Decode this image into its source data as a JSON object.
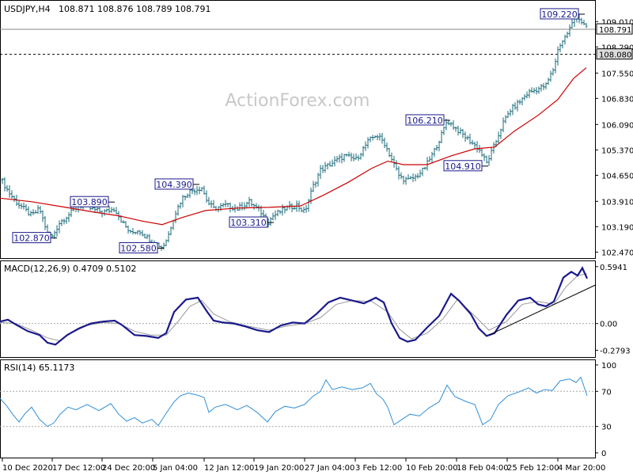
{
  "chart_data": [
    {
      "type": "line",
      "panel": "price",
      "title": "USDJPY,H4",
      "ohlc_header": "108.871 108.876 108.789 108.791",
      "watermark": "ActionForex.com",
      "ylim": [
        102.3,
        109.6
      ],
      "y_ticks": [
        "109.010",
        "108.290",
        "107.550",
        "106.830",
        "106.090",
        "105.370",
        "104.650",
        "103.910",
        "103.190",
        "102.470"
      ],
      "current_price_label": "108.791",
      "current_price": 108.791,
      "level_line_label": "108.080",
      "level_line": 108.08,
      "moving_average_color": "#cc0000",
      "bar_color": "#1a6b7a",
      "price_path": [
        [
          0,
          104.6
        ],
        [
          10,
          104.2
        ],
        [
          20,
          103.9
        ],
        [
          30,
          103.7
        ],
        [
          40,
          103.5
        ],
        [
          50,
          103.7
        ],
        [
          60,
          103.0
        ],
        [
          66,
          102.9
        ],
        [
          75,
          103.3
        ],
        [
          90,
          103.6
        ],
        [
          100,
          103.8
        ],
        [
          115,
          103.7
        ],
        [
          130,
          103.6
        ],
        [
          145,
          103.7
        ],
        [
          155,
          103.3
        ],
        [
          165,
          103.0
        ],
        [
          175,
          103.1
        ],
        [
          185,
          102.9
        ],
        [
          195,
          102.75
        ],
        [
          205,
          102.6
        ],
        [
          212,
          102.9
        ],
        [
          220,
          103.5
        ],
        [
          230,
          104.0
        ],
        [
          240,
          104.2
        ],
        [
          255,
          104.3
        ],
        [
          262,
          103.9
        ],
        [
          270,
          103.7
        ],
        [
          285,
          103.8
        ],
        [
          300,
          103.7
        ],
        [
          315,
          103.9
        ],
        [
          330,
          103.6
        ],
        [
          338,
          103.3
        ],
        [
          345,
          103.5
        ],
        [
          360,
          103.7
        ],
        [
          375,
          103.8
        ],
        [
          385,
          103.6
        ],
        [
          395,
          104.3
        ],
        [
          405,
          104.8
        ],
        [
          420,
          105.0
        ],
        [
          435,
          105.2
        ],
        [
          450,
          105.1
        ],
        [
          465,
          105.6
        ],
        [
          475,
          105.8
        ],
        [
          485,
          105.6
        ],
        [
          495,
          105.1
        ],
        [
          505,
          104.6
        ],
        [
          515,
          104.5
        ],
        [
          525,
          104.6
        ],
        [
          535,
          104.8
        ],
        [
          548,
          105.3
        ],
        [
          558,
          105.8
        ],
        [
          565,
          106.2
        ],
        [
          575,
          106.0
        ],
        [
          585,
          105.8
        ],
        [
          595,
          105.6
        ],
        [
          605,
          105.4
        ],
        [
          615,
          105.0
        ],
        [
          625,
          105.5
        ],
        [
          635,
          106.1
        ],
        [
          645,
          106.5
        ],
        [
          655,
          106.7
        ],
        [
          668,
          107.0
        ],
        [
          680,
          107.1
        ],
        [
          690,
          107.2
        ],
        [
          700,
          107.7
        ],
        [
          706,
          108.3
        ],
        [
          715,
          108.6
        ],
        [
          722,
          108.9
        ],
        [
          728,
          109.2
        ],
        [
          735,
          109.0
        ],
        [
          742,
          108.79
        ]
      ],
      "ma_path": [
        [
          0,
          104.0
        ],
        [
          40,
          103.9
        ],
        [
          80,
          103.75
        ],
        [
          120,
          103.6
        ],
        [
          150,
          103.5
        ],
        [
          180,
          103.35
        ],
        [
          205,
          103.25
        ],
        [
          230,
          103.45
        ],
        [
          260,
          103.65
        ],
        [
          300,
          103.72
        ],
        [
          340,
          103.74
        ],
        [
          380,
          103.78
        ],
        [
          410,
          104.1
        ],
        [
          440,
          104.45
        ],
        [
          470,
          104.85
        ],
        [
          490,
          105.05
        ],
        [
          510,
          104.95
        ],
        [
          540,
          104.95
        ],
        [
          570,
          105.2
        ],
        [
          600,
          105.4
        ],
        [
          625,
          105.45
        ],
        [
          650,
          105.9
        ],
        [
          680,
          106.35
        ],
        [
          705,
          106.8
        ],
        [
          725,
          107.4
        ],
        [
          741,
          107.7
        ]
      ],
      "annotations": [
        {
          "label": "109.220",
          "value": 109.22
        },
        {
          "label": "106.210",
          "value": 106.21
        },
        {
          "label": "104.910",
          "value": 104.91
        },
        {
          "label": "104.390",
          "value": 104.39
        },
        {
          "label": "103.890",
          "value": 103.89
        },
        {
          "label": "103.310",
          "value": 103.31
        },
        {
          "label": "102.870",
          "value": 102.87
        },
        {
          "label": "102.580",
          "value": 102.58
        }
      ]
    },
    {
      "type": "line",
      "panel": "macd",
      "title": "MACD(12,26,9) 0.4709 0.5102",
      "ylim": [
        -0.35,
        0.65
      ],
      "y_ticks": [
        "0.5941",
        "0.00",
        "-0.2793"
      ],
      "zero_label": "0.00",
      "macd_color": "#1a1a8c",
      "signal_color": "#999999",
      "trendline_color": "#000000",
      "macd_path": [
        [
          0,
          0.02
        ],
        [
          10,
          0.04
        ],
        [
          20,
          -0.01
        ],
        [
          35,
          -0.08
        ],
        [
          50,
          -0.12
        ],
        [
          60,
          -0.2
        ],
        [
          70,
          -0.22
        ],
        [
          85,
          -0.12
        ],
        [
          100,
          -0.05
        ],
        [
          115,
          0.0
        ],
        [
          130,
          0.02
        ],
        [
          145,
          0.03
        ],
        [
          155,
          -0.02
        ],
        [
          170,
          -0.12
        ],
        [
          185,
          -0.13
        ],
        [
          200,
          -0.15
        ],
        [
          210,
          -0.1
        ],
        [
          220,
          0.12
        ],
        [
          235,
          0.25
        ],
        [
          250,
          0.27
        ],
        [
          262,
          0.12
        ],
        [
          270,
          0.03
        ],
        [
          282,
          0.01
        ],
        [
          295,
          0.0
        ],
        [
          310,
          -0.03
        ],
        [
          325,
          -0.07
        ],
        [
          340,
          -0.09
        ],
        [
          355,
          -0.02
        ],
        [
          370,
          0.01
        ],
        [
          385,
          0.0
        ],
        [
          400,
          0.1
        ],
        [
          415,
          0.22
        ],
        [
          430,
          0.27
        ],
        [
          445,
          0.24
        ],
        [
          460,
          0.21
        ],
        [
          475,
          0.27
        ],
        [
          485,
          0.22
        ],
        [
          495,
          0.0
        ],
        [
          505,
          -0.15
        ],
        [
          515,
          -0.19
        ],
        [
          525,
          -0.17
        ],
        [
          540,
          -0.04
        ],
        [
          555,
          0.08
        ],
        [
          570,
          0.31
        ],
        [
          580,
          0.24
        ],
        [
          595,
          0.1
        ],
        [
          605,
          -0.05
        ],
        [
          615,
          -0.13
        ],
        [
          625,
          -0.1
        ],
        [
          640,
          0.09
        ],
        [
          655,
          0.24
        ],
        [
          670,
          0.27
        ],
        [
          680,
          0.2
        ],
        [
          690,
          0.18
        ],
        [
          700,
          0.23
        ],
        [
          712,
          0.48
        ],
        [
          722,
          0.54
        ],
        [
          730,
          0.5
        ],
        [
          736,
          0.58
        ],
        [
          742,
          0.47
        ]
      ],
      "signal_path": [
        [
          0,
          0.01
        ],
        [
          20,
          0.0
        ],
        [
          40,
          -0.07
        ],
        [
          60,
          -0.15
        ],
        [
          75,
          -0.18
        ],
        [
          90,
          -0.1
        ],
        [
          110,
          -0.02
        ],
        [
          130,
          0.01
        ],
        [
          150,
          0.0
        ],
        [
          170,
          -0.08
        ],
        [
          190,
          -0.12
        ],
        [
          210,
          -0.12
        ],
        [
          225,
          0.02
        ],
        [
          240,
          0.18
        ],
        [
          255,
          0.24
        ],
        [
          270,
          0.1
        ],
        [
          290,
          0.02
        ],
        [
          315,
          -0.03
        ],
        [
          340,
          -0.07
        ],
        [
          360,
          -0.03
        ],
        [
          385,
          0.0
        ],
        [
          405,
          0.06
        ],
        [
          425,
          0.2
        ],
        [
          445,
          0.24
        ],
        [
          470,
          0.23
        ],
        [
          490,
          0.12
        ],
        [
          505,
          -0.06
        ],
        [
          520,
          -0.16
        ],
        [
          540,
          -0.1
        ],
        [
          560,
          0.05
        ],
        [
          578,
          0.25
        ],
        [
          600,
          0.08
        ],
        [
          618,
          -0.07
        ],
        [
          640,
          0.02
        ],
        [
          660,
          0.2
        ],
        [
          680,
          0.23
        ],
        [
          700,
          0.2
        ],
        [
          715,
          0.38
        ],
        [
          730,
          0.5
        ],
        [
          742,
          0.52
        ]
      ],
      "trendline": [
        [
          618,
          -0.12
        ],
        [
          752,
          0.4
        ]
      ]
    },
    {
      "type": "line",
      "panel": "rsi",
      "title": "RSI(14) 65.1173",
      "ylim": [
        0,
        100
      ],
      "y_ticks": [
        "100",
        "70",
        "30",
        "0"
      ],
      "levels": [
        70,
        30
      ],
      "rsi_color": "#2f8fd8",
      "rsi_path": [
        [
          0,
          62
        ],
        [
          8,
          54
        ],
        [
          16,
          44
        ],
        [
          24,
          35
        ],
        [
          32,
          45
        ],
        [
          40,
          52
        ],
        [
          50,
          38
        ],
        [
          60,
          30
        ],
        [
          68,
          34
        ],
        [
          76,
          44
        ],
        [
          86,
          52
        ],
        [
          96,
          49
        ],
        [
          110,
          55
        ],
        [
          125,
          48
        ],
        [
          140,
          56
        ],
        [
          150,
          44
        ],
        [
          160,
          36
        ],
        [
          170,
          40
        ],
        [
          180,
          34
        ],
        [
          192,
          38
        ],
        [
          200,
          31
        ],
        [
          210,
          45
        ],
        [
          220,
          58
        ],
        [
          228,
          65
        ],
        [
          238,
          68
        ],
        [
          248,
          66
        ],
        [
          258,
          63
        ],
        [
          264,
          46
        ],
        [
          272,
          52
        ],
        [
          285,
          55
        ],
        [
          300,
          49
        ],
        [
          312,
          54
        ],
        [
          325,
          46
        ],
        [
          338,
          35
        ],
        [
          348,
          47
        ],
        [
          360,
          53
        ],
        [
          372,
          51
        ],
        [
          385,
          55
        ],
        [
          395,
          64
        ],
        [
          405,
          70
        ],
        [
          412,
          83
        ],
        [
          420,
          72
        ],
        [
          432,
          75
        ],
        [
          445,
          72
        ],
        [
          458,
          74
        ],
        [
          468,
          79
        ],
        [
          476,
          67
        ],
        [
          484,
          61
        ],
        [
          490,
          52
        ],
        [
          498,
          32
        ],
        [
          508,
          38
        ],
        [
          518,
          44
        ],
        [
          530,
          42
        ],
        [
          542,
          51
        ],
        [
          555,
          58
        ],
        [
          565,
          77
        ],
        [
          575,
          64
        ],
        [
          590,
          58
        ],
        [
          600,
          55
        ],
        [
          610,
          32
        ],
        [
          620,
          38
        ],
        [
          630,
          55
        ],
        [
          642,
          65
        ],
        [
          655,
          69
        ],
        [
          668,
          74
        ],
        [
          678,
          68
        ],
        [
          688,
          72
        ],
        [
          698,
          71
        ],
        [
          708,
          82
        ],
        [
          720,
          84
        ],
        [
          728,
          80
        ],
        [
          734,
          86
        ],
        [
          742,
          65
        ]
      ],
      "x_ticks": [
        "10 Dec 2020",
        "17 Dec 12:00",
        "24 Dec 20:00",
        "5 Jan 04:00",
        "12 Jan 12:00",
        "19 Jan 20:00",
        "27 Jan 04:00",
        "3 Feb 12:00",
        "10 Feb 20:00",
        "18 Feb 04:00",
        "25 Feb 12:00",
        "4 Mar 20:00"
      ]
    }
  ]
}
